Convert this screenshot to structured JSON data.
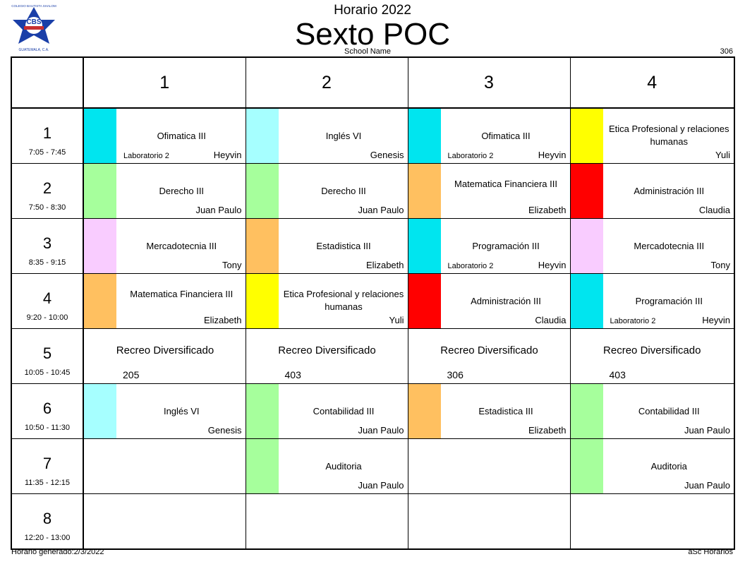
{
  "header": {
    "pre_title": "Horario 2022",
    "title": "Sexto POC",
    "school_name": "School Name",
    "room_code": "306",
    "logo_text_top": "COLEGIO BAUTISTA SHALOM",
    "logo_text_mid": "CBS",
    "logo_text_bottom": "GUATEMALA, C.A."
  },
  "columns": [
    "1",
    "2",
    "3",
    "4"
  ],
  "periods": [
    {
      "num": "1",
      "time": "7:05 - 7:45"
    },
    {
      "num": "2",
      "time": "7:50 - 8:30"
    },
    {
      "num": "3",
      "time": "8:35 - 9:15"
    },
    {
      "num": "4",
      "time": "9:20 - 10:00"
    },
    {
      "num": "5",
      "time": "10:05 - 10:45"
    },
    {
      "num": "6",
      "time": "10:50 - 11:30"
    },
    {
      "num": "7",
      "time": "11:35 - 12:15"
    },
    {
      "num": "8",
      "time": "12:20 - 13:00"
    }
  ],
  "colors": {
    "cyan": "#00e5ef",
    "light_cyan": "#a6ffff",
    "yellow": "#ffff00",
    "green": "#a6ff9c",
    "orange": "#ffc060",
    "red": "#ff0000",
    "pink": "#f9ccff"
  },
  "cells": [
    [
      {
        "subject": "Ofimatica III",
        "teacher": "Heyvin",
        "room": "Laboratorio 2",
        "color": "#00e5ef"
      },
      {
        "subject": "Inglés VI",
        "teacher": "Genesis",
        "room": "",
        "color": "#a6ffff"
      },
      {
        "subject": "Ofimatica III",
        "teacher": "Heyvin",
        "room": "Laboratorio 2",
        "color": "#00e5ef"
      },
      {
        "subject": "Etica Profesional y relaciones humanas",
        "teacher": "Yuli",
        "room": "",
        "color": "#ffff00"
      }
    ],
    [
      {
        "subject": "Derecho III",
        "teacher": "Juan Paulo",
        "room": "",
        "color": "#a6ff9c"
      },
      {
        "subject": "Derecho III",
        "teacher": "Juan Paulo",
        "room": "",
        "color": "#a6ff9c"
      },
      {
        "subject": "Matematica Financiera III",
        "teacher": "Elizabeth",
        "room": "",
        "color": "#ffc060"
      },
      {
        "subject": "Administración III",
        "teacher": "Claudia",
        "room": "",
        "color": "#ff0000"
      }
    ],
    [
      {
        "subject": "Mercadotecnia III",
        "teacher": "Tony",
        "room": "",
        "color": "#f9ccff"
      },
      {
        "subject": "Estadistica III",
        "teacher": "Elizabeth",
        "room": "",
        "color": "#ffc060"
      },
      {
        "subject": "Programación III",
        "teacher": "Heyvin",
        "room": "Laboratorio 2",
        "color": "#00e5ef"
      },
      {
        "subject": "Mercadotecnia III",
        "teacher": "Tony",
        "room": "",
        "color": "#f9ccff"
      }
    ],
    [
      {
        "subject": "Matematica Financiera III",
        "teacher": "Elizabeth",
        "room": "",
        "color": "#ffc060"
      },
      {
        "subject": "Etica Profesional y relaciones humanas",
        "teacher": "Yuli",
        "room": "",
        "color": "#ffff00"
      },
      {
        "subject": "Administración III",
        "teacher": "Claudia",
        "room": "",
        "color": "#ff0000"
      },
      {
        "subject": "Programación III",
        "teacher": "Heyvin",
        "room": "Laboratorio 2",
        "color": "#00e5ef"
      }
    ],
    [
      {
        "break": true,
        "subject": "Recreo Diversificado",
        "room": "205"
      },
      {
        "break": true,
        "subject": "Recreo Diversificado",
        "room": "403"
      },
      {
        "break": true,
        "subject": "Recreo Diversificado",
        "room": "306"
      },
      {
        "break": true,
        "subject": "Recreo Diversificado",
        "room": "403"
      }
    ],
    [
      {
        "subject": "Inglés VI",
        "teacher": "Genesis",
        "room": "",
        "color": "#a6ffff"
      },
      {
        "subject": "Contabilidad III",
        "teacher": "Juan Paulo",
        "room": "",
        "color": "#a6ff9c"
      },
      {
        "subject": "Estadistica III",
        "teacher": "Elizabeth",
        "room": "",
        "color": "#ffc060"
      },
      {
        "subject": "Contabilidad III",
        "teacher": "Juan Paulo",
        "room": "",
        "color": "#a6ff9c"
      }
    ],
    [
      null,
      {
        "subject": "Auditoria",
        "teacher": "Juan Paulo",
        "room": "",
        "color": "#a6ff9c"
      },
      null,
      {
        "subject": "Auditoria",
        "teacher": "Juan Paulo",
        "room": "",
        "color": "#a6ff9c"
      }
    ],
    [
      null,
      null,
      null,
      null
    ]
  ],
  "footer": {
    "generated": "Horario generado:2/3/2022",
    "brand": "aSc Horarios"
  }
}
